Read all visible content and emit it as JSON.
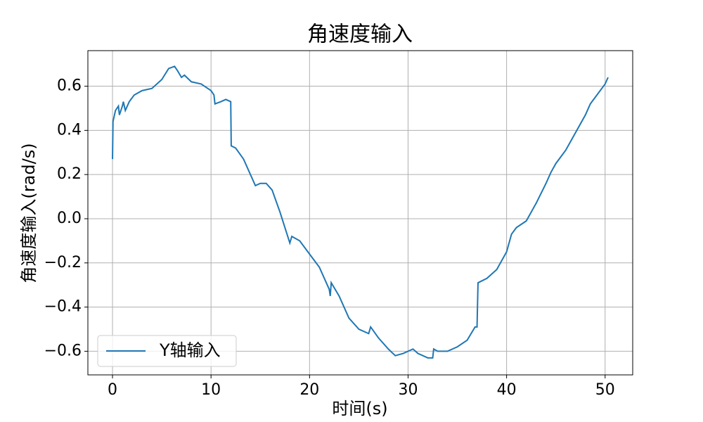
{
  "chart_data": {
    "type": "line",
    "title": "角速度输入",
    "xlabel": "时间(s)",
    "ylabel": "角速度输入(rad/s)",
    "x": [
      0,
      0.05,
      0.3,
      0.6,
      0.7,
      1.0,
      1.1,
      1.3,
      1.7,
      2.2,
      3,
      4,
      5,
      5.7,
      6.3,
      6.6,
      7,
      7.3,
      8,
      9,
      10,
      10.3,
      10.4,
      11,
      11.5,
      12,
      12.05,
      12.5,
      13.3,
      14,
      14.5,
      15,
      15.6,
      16.2,
      17,
      17.5,
      18,
      18.2,
      19,
      20,
      21,
      22,
      22.1,
      22.2,
      23,
      24,
      25,
      26,
      26.2,
      27,
      28,
      28.7,
      29.5,
      30,
      30.5,
      31,
      32,
      32.5,
      32.6,
      33,
      34,
      35,
      36,
      36.8,
      37,
      37.1,
      38,
      39,
      40,
      40.5,
      41,
      42,
      43,
      44,
      44.5,
      45,
      46,
      47,
      48,
      48.5,
      49,
      50,
      50.3
    ],
    "series": [
      {
        "name": "Y轴输入",
        "color": "#1f77b4",
        "values": [
          0.27,
          0.44,
          0.49,
          0.51,
          0.47,
          0.51,
          0.53,
          0.49,
          0.53,
          0.56,
          0.58,
          0.59,
          0.63,
          0.68,
          0.69,
          0.67,
          0.64,
          0.65,
          0.62,
          0.61,
          0.58,
          0.56,
          0.52,
          0.53,
          0.54,
          0.53,
          0.33,
          0.32,
          0.27,
          0.2,
          0.15,
          0.16,
          0.16,
          0.13,
          0.03,
          -0.04,
          -0.11,
          -0.08,
          -0.1,
          -0.16,
          -0.22,
          -0.32,
          -0.35,
          -0.29,
          -0.35,
          -0.45,
          -0.5,
          -0.52,
          -0.49,
          -0.54,
          -0.59,
          -0.62,
          -0.61,
          -0.6,
          -0.59,
          -0.61,
          -0.63,
          -0.63,
          -0.59,
          -0.6,
          -0.6,
          -0.58,
          -0.55,
          -0.49,
          -0.49,
          -0.29,
          -0.27,
          -0.23,
          -0.15,
          -0.07,
          -0.04,
          -0.01,
          0.07,
          0.16,
          0.21,
          0.25,
          0.31,
          0.39,
          0.47,
          0.52,
          0.55,
          0.61,
          0.64
        ]
      }
    ],
    "xlim": [
      -2.5,
      52.8
    ],
    "ylim": [
      -0.707,
      0.761
    ],
    "xticks": [
      0,
      10,
      20,
      30,
      40,
      50
    ],
    "yticks": [
      {
        "value": -0.6,
        "label": "−0.6"
      },
      {
        "value": -0.4,
        "label": "−0.4"
      },
      {
        "value": -0.2,
        "label": "−0.2"
      },
      {
        "value": 0,
        "label": "0.0"
      },
      {
        "value": 0.2,
        "label": "0.2"
      },
      {
        "value": 0.4,
        "label": "0.4"
      },
      {
        "value": 0.6,
        "label": "0.6"
      }
    ],
    "grid": true,
    "legend": "lower left"
  }
}
